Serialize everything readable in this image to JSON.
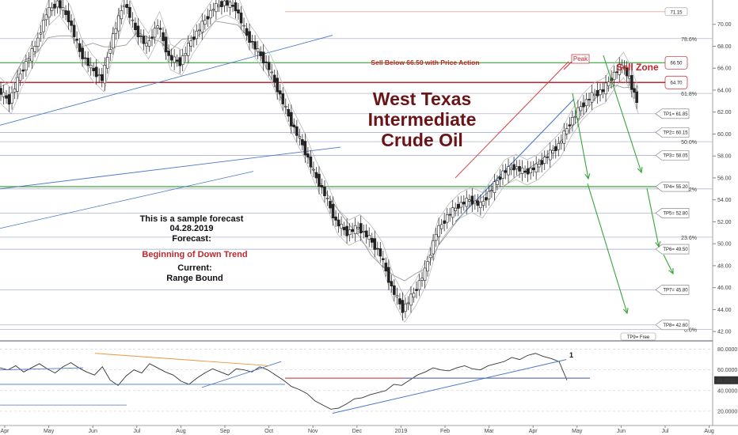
{
  "chart_data": {
    "type": "candlestick",
    "title": "West Texas Intermediate Crude Oil",
    "title_lines": [
      "West Texas",
      "Intermediate",
      "Crude Oil"
    ],
    "annotations": {
      "sell_below": "Sell Below 66.50 with Price Action",
      "sell_zone": "Sell Zone",
      "peak": "Peak",
      "sample_line1": "This is a sample forecast",
      "sample_date": "04.28.2019",
      "forecast_label": "Forecast:",
      "forecast_value": "Beginning of Down Trend",
      "current_label": "Current:",
      "current_value": "Range Bound"
    },
    "price_axis": {
      "min": 41,
      "max": 72,
      "ticks": [
        "42.00",
        "44.00",
        "46.00",
        "48.00",
        "50.00",
        "52.00",
        "54.00",
        "56.00",
        "58.00",
        "60.00",
        "62.00",
        "64.00",
        "66.00",
        "68.00",
        "70.00"
      ]
    },
    "fib_levels": [
      {
        "label": "78.6%",
        "price": 68.7
      },
      {
        "label": "61.8%",
        "price": 63.7
      },
      {
        "label": "50.0%",
        "price": 59.3
      },
      {
        "label": "38.2%",
        "price": 55.0
      },
      {
        "label": "23.6%",
        "price": 50.6
      },
      {
        "label": "0.0%",
        "price": 42.2
      }
    ],
    "zone_prices": [
      {
        "label": "66.50",
        "price": 66.5
      },
      {
        "label": "64.70",
        "price": 64.7
      }
    ],
    "targets": [
      {
        "label": "TP1= 61.85",
        "price": 61.85
      },
      {
        "label": "TP2= 60.15",
        "price": 60.15
      },
      {
        "label": "TP3= 58.05",
        "price": 58.05
      },
      {
        "label": "TP4= 55.20",
        "price": 55.2
      },
      {
        "label": "TP5= 52.80",
        "price": 52.8
      },
      {
        "label": "TP6= 49.50",
        "price": 49.5
      },
      {
        "label": "TP7= 45.80",
        "price": 45.8
      },
      {
        "label": "TP8= 42.60",
        "price": 42.6
      },
      {
        "label": "TP9= Free",
        "price": null
      }
    ],
    "top_level_label": "71.15",
    "close_series": [
      {
        "t": 0,
        "c": 64.0
      },
      {
        "t": 3,
        "c": 63.0
      },
      {
        "t": 6,
        "c": 65.5
      },
      {
        "t": 10,
        "c": 68.0
      },
      {
        "t": 13,
        "c": 71.0
      },
      {
        "t": 16,
        "c": 72.0
      },
      {
        "t": 19,
        "c": 70.5
      },
      {
        "t": 22,
        "c": 67.5
      },
      {
        "t": 25,
        "c": 66.0
      },
      {
        "t": 28,
        "c": 65.0
      },
      {
        "t": 31,
        "c": 69.0
      },
      {
        "t": 34,
        "c": 72.0
      },
      {
        "t": 37,
        "c": 69.5
      },
      {
        "t": 40,
        "c": 68.0
      },
      {
        "t": 43,
        "c": 70.0
      },
      {
        "t": 46,
        "c": 67.0
      },
      {
        "t": 49,
        "c": 66.5
      },
      {
        "t": 52,
        "c": 68.5
      },
      {
        "t": 55,
        "c": 70.0
      },
      {
        "t": 58,
        "c": 71.5
      },
      {
        "t": 61,
        "c": 72.0
      },
      {
        "t": 64,
        "c": 71.5
      },
      {
        "t": 67,
        "c": 69.0
      },
      {
        "t": 70,
        "c": 67.5
      },
      {
        "t": 73,
        "c": 66.0
      },
      {
        "t": 76,
        "c": 63.5
      },
      {
        "t": 79,
        "c": 61.0
      },
      {
        "t": 82,
        "c": 59.0
      },
      {
        "t": 85,
        "c": 56.5
      },
      {
        "t": 88,
        "c": 54.5
      },
      {
        "t": 91,
        "c": 52.0
      },
      {
        "t": 94,
        "c": 51.0
      },
      {
        "t": 97,
        "c": 51.5
      },
      {
        "t": 100,
        "c": 50.5
      },
      {
        "t": 103,
        "c": 49.0
      },
      {
        "t": 106,
        "c": 46.0
      },
      {
        "t": 109,
        "c": 44.0
      },
      {
        "t": 112,
        "c": 45.5
      },
      {
        "t": 115,
        "c": 47.5
      },
      {
        "t": 118,
        "c": 51.0
      },
      {
        "t": 121,
        "c": 52.5
      },
      {
        "t": 124,
        "c": 53.5
      },
      {
        "t": 127,
        "c": 54.0
      },
      {
        "t": 130,
        "c": 53.5
      },
      {
        "t": 133,
        "c": 55.0
      },
      {
        "t": 136,
        "c": 56.5
      },
      {
        "t": 139,
        "c": 57.0
      },
      {
        "t": 142,
        "c": 56.5
      },
      {
        "t": 145,
        "c": 57.0
      },
      {
        "t": 148,
        "c": 58.0
      },
      {
        "t": 151,
        "c": 59.0
      },
      {
        "t": 154,
        "c": 61.0
      },
      {
        "t": 157,
        "c": 62.5
      },
      {
        "t": 160,
        "c": 63.5
      },
      {
        "t": 163,
        "c": 64.0
      },
      {
        "t": 166,
        "c": 65.5
      },
      {
        "t": 168,
        "c": 66.3
      },
      {
        "t": 170,
        "c": 65.0
      },
      {
        "t": 172,
        "c": 63.0
      }
    ],
    "time_axis": [
      "Apr",
      "May",
      "Jun",
      "Jul",
      "Aug",
      "Sep",
      "Oct",
      "Nov",
      "Dec",
      "2019",
      "Feb",
      "Mar",
      "Apr",
      "May",
      "Jun",
      "Jul",
      "Aug"
    ],
    "oscillator": {
      "min": 10,
      "max": 85,
      "ticks": [
        "20.0000",
        "40.0000",
        "60.0000",
        "80.0000"
      ],
      "current_value": "49.9591",
      "marker": "1",
      "values": [
        62,
        60,
        64,
        58,
        62,
        66,
        61,
        57,
        63,
        67,
        62,
        58,
        55,
        63,
        50,
        45,
        54,
        60,
        57,
        66,
        62,
        58,
        55,
        49,
        46,
        52,
        57,
        61,
        58,
        55,
        61,
        60,
        58,
        63,
        60,
        55,
        50,
        44,
        41,
        37,
        30,
        26,
        22,
        23,
        27,
        32,
        33,
        36,
        38,
        40,
        46,
        45,
        50,
        55,
        58,
        62,
        60,
        59,
        62,
        64,
        61,
        60,
        64,
        66,
        68,
        72,
        70,
        74,
        76,
        73,
        71,
        68,
        50
      ]
    }
  }
}
